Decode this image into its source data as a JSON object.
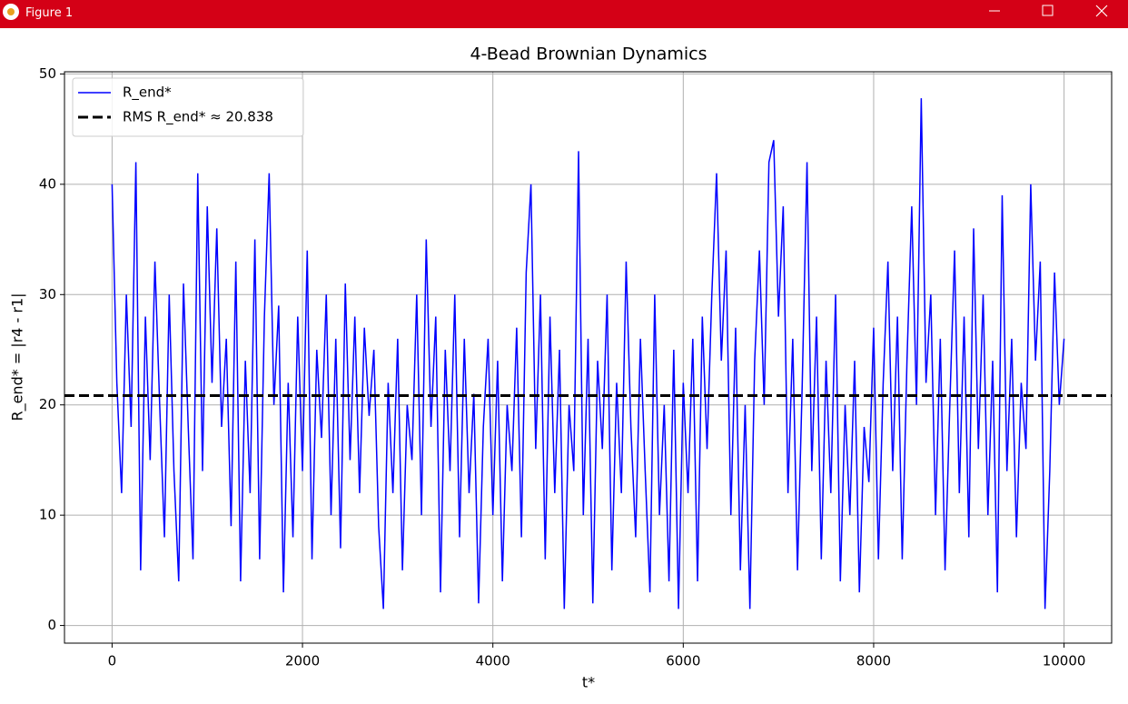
{
  "window": {
    "title": "Figure 1"
  },
  "chart_data": {
    "type": "line",
    "title": "4-Bead Brownian Dynamics",
    "x_label": "t*",
    "y_label": "R_end* = |r4 - r1|",
    "x": [
      0,
      50,
      100,
      150,
      200,
      250,
      300,
      350,
      400,
      450,
      500,
      550,
      600,
      650,
      700,
      750,
      800,
      850,
      900,
      950,
      1000,
      1050,
      1100,
      1150,
      1200,
      1250,
      1300,
      1350,
      1400,
      1450,
      1500,
      1550,
      1600,
      1650,
      1700,
      1750,
      1800,
      1850,
      1900,
      1950,
      2000,
      2050,
      2100,
      2150,
      2200,
      2250,
      2300,
      2350,
      2400,
      2450,
      2500,
      2550,
      2600,
      2650,
      2700,
      2750,
      2800,
      2850,
      2900,
      2950,
      3000,
      3050,
      3100,
      3150,
      3200,
      3250,
      3300,
      3350,
      3400,
      3450,
      3500,
      3550,
      3600,
      3650,
      3700,
      3750,
      3800,
      3850,
      3900,
      3950,
      4000,
      4050,
      4100,
      4150,
      4200,
      4250,
      4300,
      4350,
      4400,
      4450,
      4500,
      4550,
      4600,
      4650,
      4700,
      4750,
      4800,
      4850,
      4900,
      4950,
      5000,
      5050,
      5100,
      5150,
      5200,
      5250,
      5300,
      5350,
      5400,
      5450,
      5500,
      5550,
      5600,
      5650,
      5700,
      5750,
      5800,
      5850,
      5900,
      5950,
      6000,
      6050,
      6100,
      6150,
      6200,
      6250,
      6300,
      6350,
      6400,
      6450,
      6500,
      6550,
      6600,
      6650,
      6700,
      6750,
      6800,
      6850,
      6900,
      6950,
      7000,
      7050,
      7100,
      7150,
      7200,
      7250,
      7300,
      7350,
      7400,
      7450,
      7500,
      7550,
      7600,
      7650,
      7700,
      7750,
      7800,
      7850,
      7900,
      7950,
      8000,
      8050,
      8100,
      8150,
      8200,
      8250,
      8300,
      8350,
      8400,
      8450,
      8500,
      8550,
      8600,
      8650,
      8700,
      8750,
      8800,
      8850,
      8900,
      8950,
      9000,
      9050,
      9100,
      9150,
      9200,
      9250,
      9300,
      9350,
      9400,
      9450,
      9500,
      9550,
      9600,
      9650,
      9700,
      9750,
      9800,
      9850,
      9900,
      9950,
      10000
    ],
    "series": [
      {
        "name": "R_end*",
        "color": "#0000ff",
        "values": [
          40,
          22,
          12,
          30,
          18,
          42,
          5,
          28,
          15,
          33,
          20,
          8,
          30,
          14,
          4,
          31,
          18,
          6,
          41,
          14,
          38,
          22,
          36,
          18,
          26,
          9,
          33,
          4,
          24,
          12,
          35,
          6,
          28,
          41,
          20,
          29,
          3,
          22,
          8,
          28,
          14,
          34,
          6,
          25,
          17,
          30,
          10,
          26,
          7,
          31,
          15,
          28,
          12,
          27,
          19,
          25,
          9,
          1.5,
          22,
          12,
          26,
          5,
          20,
          15,
          30,
          10,
          35,
          18,
          28,
          3,
          25,
          14,
          30,
          8,
          26,
          12,
          21,
          2,
          18,
          26,
          10,
          24,
          4,
          20,
          14,
          27,
          8,
          32,
          40,
          16,
          30,
          6,
          28,
          12,
          25,
          1.5,
          20,
          14,
          43,
          10,
          26,
          2,
          24,
          16,
          30,
          5,
          22,
          12,
          33,
          18,
          8,
          26,
          14,
          3,
          30,
          10,
          20,
          4,
          25,
          1.5,
          22,
          12,
          26,
          4,
          28,
          16,
          30,
          41,
          24,
          34,
          10,
          27,
          5,
          20,
          1.5,
          24,
          34,
          20,
          42,
          44,
          28,
          38,
          12,
          26,
          5,
          22,
          42,
          14,
          28,
          6,
          24,
          12,
          30,
          4,
          20,
          10,
          24,
          3,
          18,
          13,
          27,
          6,
          22,
          33,
          14,
          28,
          6,
          24,
          38,
          20,
          47.8,
          22,
          30,
          10,
          26,
          5,
          20,
          34,
          12,
          28,
          8,
          36,
          16,
          30,
          10,
          24,
          3,
          39,
          14,
          26,
          8,
          22,
          16,
          40,
          24,
          33,
          1.5,
          14,
          32,
          20,
          26
        ]
      }
    ],
    "hlines": [
      {
        "name": "RMS R_end* ≈ 20.838",
        "y": 20.838,
        "color": "#000000",
        "dashed": true
      }
    ],
    "xlim": [
      -500,
      10500
    ],
    "ylim": [
      -1.6,
      50.2
    ],
    "xticks": [
      0,
      2000,
      4000,
      6000,
      8000,
      10000
    ],
    "yticks": [
      0,
      10,
      20,
      30,
      40,
      50
    ],
    "grid": true,
    "legend": "upper left"
  }
}
